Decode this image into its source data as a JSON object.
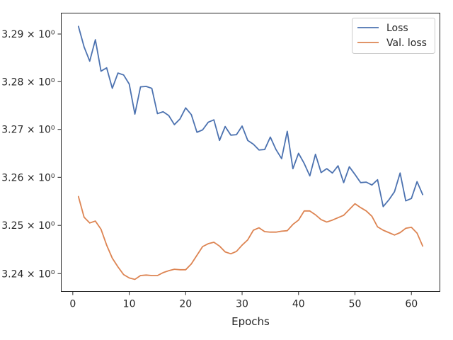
{
  "chart_data": {
    "type": "line",
    "title": "",
    "xlabel": "Epochs",
    "ylabel": "",
    "xlim": [
      -2.05,
      65.05
    ],
    "ylim": [
      3.2363,
      3.2944
    ],
    "y_scale": "log",
    "x_ticks": [
      0,
      10,
      20,
      30,
      40,
      50,
      60
    ],
    "y_ticks": [
      3.24,
      3.25,
      3.26,
      3.27,
      3.28,
      3.29
    ],
    "y_tick_labels": [
      "3.24 × 10⁰",
      "3.25 × 10⁰",
      "3.26 × 10⁰",
      "3.27 × 10⁰",
      "3.28 × 10⁰",
      "3.29 × 10⁰"
    ],
    "grid": false,
    "legend_position": "top-right",
    "x": [
      1,
      2,
      3,
      4,
      5,
      6,
      7,
      8,
      9,
      10,
      11,
      12,
      13,
      14,
      15,
      16,
      17,
      18,
      19,
      20,
      21,
      22,
      23,
      24,
      25,
      26,
      27,
      28,
      29,
      30,
      31,
      32,
      33,
      34,
      35,
      36,
      37,
      38,
      39,
      40,
      41,
      42,
      43,
      44,
      45,
      46,
      47,
      48,
      49,
      50,
      51,
      52,
      53,
      54,
      55,
      56,
      57,
      58,
      59,
      60,
      61,
      62
    ],
    "series": [
      {
        "name": "Loss",
        "color": "#4c72b0",
        "values": [
          3.2916,
          3.2873,
          3.2843,
          3.2888,
          3.2822,
          3.2829,
          3.2786,
          3.2818,
          3.2814,
          3.2795,
          3.2732,
          3.2789,
          3.279,
          3.2786,
          3.2733,
          3.2737,
          3.2729,
          3.271,
          3.2722,
          3.2745,
          3.2731,
          3.2694,
          3.2699,
          3.2715,
          3.272,
          3.2677,
          3.2706,
          3.2688,
          3.2689,
          3.2707,
          3.2677,
          3.2669,
          3.2657,
          3.2658,
          3.2684,
          3.2658,
          3.2639,
          3.2696,
          3.2618,
          3.265,
          3.2629,
          3.2603,
          3.2648,
          3.261,
          3.2618,
          3.2609,
          3.2624,
          3.2589,
          3.2622,
          3.2606,
          3.2589,
          3.259,
          3.2584,
          3.2595,
          3.2539,
          3.2553,
          3.257,
          3.2609,
          3.2551,
          3.2556,
          3.2591,
          3.2564
        ]
      },
      {
        "name": "Val. loss",
        "color": "#dd8452",
        "values": [
          3.256,
          3.2517,
          3.2505,
          3.2509,
          3.2492,
          3.2459,
          3.2432,
          3.2414,
          3.2398,
          3.2391,
          3.2388,
          3.2396,
          3.2397,
          3.2396,
          3.2396,
          3.2402,
          3.2406,
          3.2409,
          3.2408,
          3.2408,
          3.242,
          3.2438,
          3.2456,
          3.2462,
          3.2465,
          3.2457,
          3.2445,
          3.2441,
          3.2446,
          3.2459,
          3.247,
          3.249,
          3.2495,
          3.2487,
          3.2486,
          3.2486,
          3.2488,
          3.2489,
          3.2502,
          3.2511,
          3.253,
          3.253,
          3.2522,
          3.2512,
          3.2507,
          3.2511,
          3.2516,
          3.2521,
          3.2533,
          3.2545,
          3.2537,
          3.253,
          3.2519,
          3.2497,
          3.249,
          3.2485,
          3.248,
          3.2485,
          3.2494,
          3.2496,
          3.2484,
          3.2457
        ]
      }
    ]
  }
}
